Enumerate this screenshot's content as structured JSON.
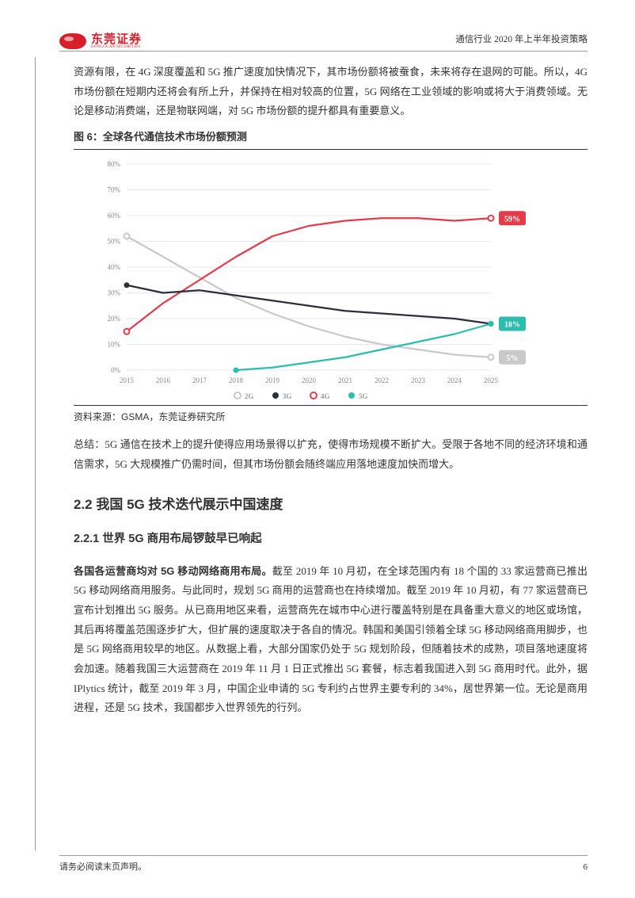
{
  "header": {
    "logo_cn": "东莞证券",
    "logo_en": "DONGGUAN SECURITIES",
    "title": "通信行业 2020 年上半年投资策略"
  },
  "paragraphs": {
    "p1": "资源有限，在 4G 深度覆盖和 5G 推广速度加快情况下，其市场份额将被蚕食，未来将存在退网的可能。所以，4G 市场份额在短期内还将会有所上升，并保持在相对较高的位置，5G 网络在工业领域的影响或将大于消费领域。无论是移动消费端，还是物联网端，对 5G 市场份额的提升都具有重要意义。",
    "fig_title": "图 6：全球各代通信技术市场份额预测",
    "source": "资料来源：GSMA，东莞证券研究所",
    "p2": "总结：5G 通信在技术上的提升使得应用场景得以扩充，使得市场规模不断扩大。受限于各地不同的经济环境和通信需求，5G 大规模推广仍需时间，但其市场份额会随终端应用落地速度加快而增大。",
    "h2": "2.2 我国 5G 技术迭代展示中国速度",
    "h3": "2.2.1  世界 5G 商用布局锣鼓早已响起",
    "p3_bold": "各国各运营商均对 5G 移动网络商用布局。",
    "p3": "截至 2019 年 10 月初，在全球范围内有 18 个国的 33 家运营商已推出 5G 移动网络商用服务。与此同时，规划 5G 商用的运营商也在持续增加。截至 2019 年 10 月初，有 77 家运营商已宣布计划推出 5G 服务。从已商用地区来看，运营商先在城市中心进行覆盖特别是在具备重大意义的地区或场馆，其后再将覆盖范围逐步扩大，但扩展的速度取决于各自的情况。韩国和美国引领着全球 5G 移动网络商用脚步，也是 5G 网络商用较早的地区。从数据上看，大部分国家仍处于 5G 规划阶段，但随着技术的成熟，项目落地速度将会加速。随着我国三大运营商在 2019 年 11 月 1 日正式推出 5G 套餐，标志着我国进入到 5G 商用时代。此外，据 IPlytics 统计，截至 2019 年 3 月，中国企业申请的 5G 专利约占世界主要专利的 34%，居世界第一位。无论是商用进程，还是 5G 技术，我国都步入世界领先的行列。"
  },
  "chart": {
    "type": "line",
    "x_labels": [
      "2015",
      "2016",
      "2017",
      "2018",
      "2019",
      "2020",
      "2021",
      "2022",
      "2023",
      "2024",
      "2025"
    ],
    "ylim": [
      0,
      80
    ],
    "ytick_step": 10,
    "y_suffix": "%",
    "background_color": "#ffffff",
    "grid_color": "#e8e8e8",
    "series": {
      "2G": {
        "color": "#c9c9c9",
        "values": [
          52,
          44,
          36,
          28,
          22,
          17,
          13,
          10,
          8,
          6,
          5
        ],
        "end_label": "5%",
        "start_year": 2015,
        "marker": "circle-open"
      },
      "3G": {
        "color": "#2a2f3a",
        "values": [
          33,
          30,
          31,
          29,
          27,
          25,
          23,
          22,
          21,
          20,
          18
        ],
        "end_label": "18%",
        "start_year": 2015,
        "marker": "circle"
      },
      "4G": {
        "color": "#e23b4a",
        "values": [
          15,
          26,
          35,
          44,
          52,
          56,
          58,
          59,
          59,
          58,
          59
        ],
        "end_label": "59%",
        "start_year": 2015,
        "marker": "circle-open"
      },
      "5G": {
        "color": "#2bbdb0",
        "values": [
          0,
          1,
          3,
          5,
          8,
          11,
          14,
          18
        ],
        "end_label": "18%",
        "start_year": 2018,
        "marker": "circle"
      }
    },
    "legend": [
      "2G",
      "3G",
      "4G",
      "5G"
    ],
    "axis_font_size": 9,
    "line_width": 2.2,
    "marker_size": 3.5
  },
  "footer": {
    "left": "请务必阅读末页声明。",
    "page": "6"
  }
}
